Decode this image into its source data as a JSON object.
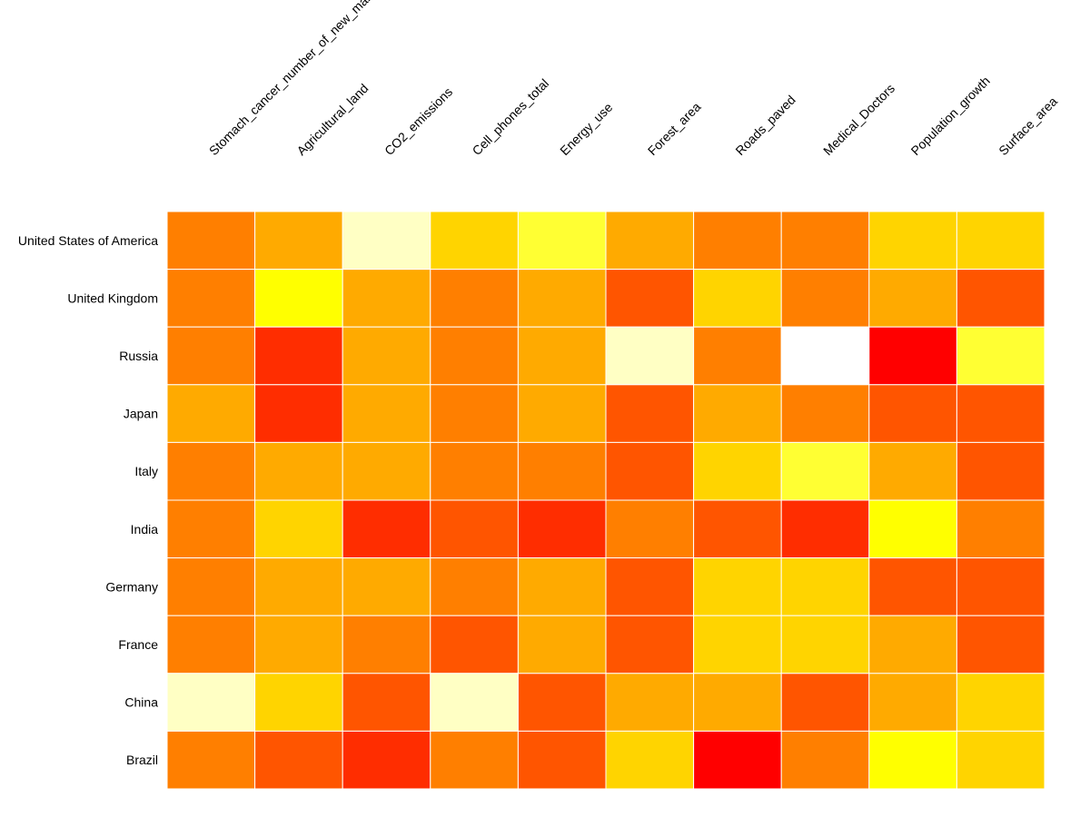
{
  "chart_data": {
    "type": "heatmap",
    "title": "",
    "xlabel": "",
    "ylabel": "",
    "columns": [
      "Stomach_cancer_number_of_new_male",
      "Agricultural_land",
      "CO2_emissions",
      "Cell_phones_total",
      "Energy_use",
      "Forest_area",
      "Roads_paved",
      "Medical_Doctors",
      "Population_growth",
      "Surface_area"
    ],
    "rows": [
      "United States of America",
      "United Kingdom",
      "Russia",
      "Japan",
      "Italy",
      "India",
      "Germany",
      "France",
      "China",
      "Brazil"
    ],
    "values": [
      [
        4,
        5,
        9,
        6,
        7,
        5,
        4,
        4,
        6,
        6
      ],
      [
        4,
        8,
        5,
        4,
        5,
        3,
        6,
        4,
        5,
        3
      ],
      [
        4,
        2,
        5,
        4,
        5,
        9,
        4,
        10,
        1,
        7
      ],
      [
        5,
        2,
        5,
        4,
        5,
        3,
        5,
        4,
        3,
        3
      ],
      [
        4,
        5,
        5,
        4,
        4,
        3,
        6,
        7,
        5,
        3
      ],
      [
        4,
        6,
        2,
        3,
        2,
        4,
        3,
        2,
        8,
        4
      ],
      [
        4,
        5,
        5,
        4,
        5,
        3,
        6,
        6,
        3,
        3
      ],
      [
        4,
        5,
        4,
        3,
        5,
        3,
        6,
        6,
        5,
        3
      ],
      [
        9,
        6,
        3,
        9,
        3,
        5,
        5,
        3,
        5,
        6
      ],
      [
        4,
        3,
        2,
        4,
        3,
        6,
        1,
        4,
        8,
        6
      ]
    ],
    "value_range": [
      1,
      10
    ],
    "color_scale": {
      "1": "#ff0000",
      "2": "#ff2d00",
      "3": "#ff5500",
      "4": "#ff7f00",
      "5": "#ffaa00",
      "6": "#ffd400",
      "7": "#ffff33",
      "8": "#ffff00",
      "9": "#ffffc4",
      "10": "#ffffff"
    },
    "grid": false,
    "legend": "none"
  }
}
